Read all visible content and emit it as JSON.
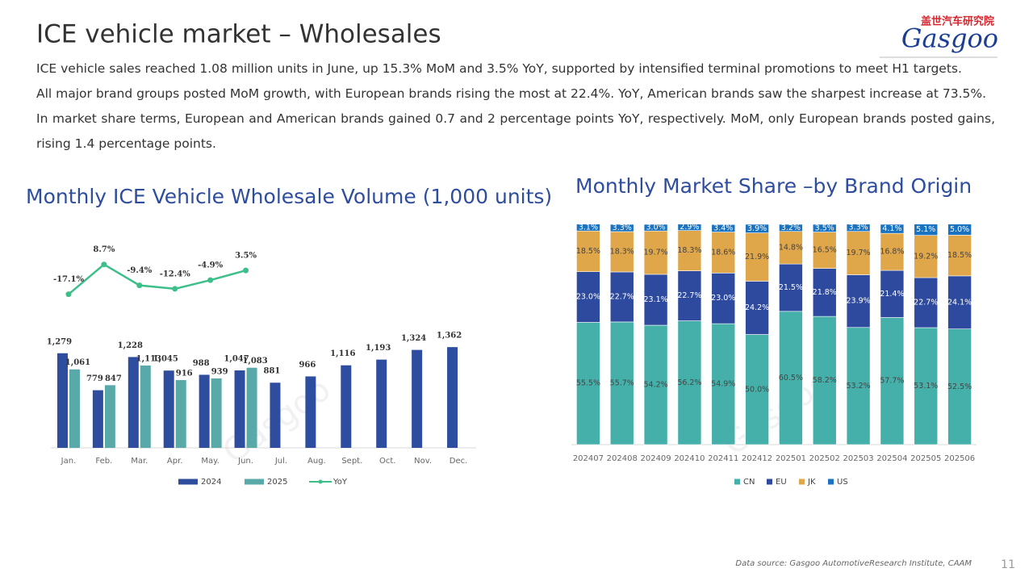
{
  "title": "ICE vehicle market – Wholesales",
  "paragraphs": [
    "ICE vehicle sales reached 1.08 million units in June, up 15.3% MoM and 3.5% YoY, supported by intensified terminal promotions to meet H1 targets.",
    "All major brand groups posted MoM growth, with European brands rising the most at 22.4%. YoY, American brands saw the sharpest increase at 73.5%.",
    "In market share terms, European and American brands gained 0.7 and 2 percentage points YoY, respectively. MoM, only European brands posted gains, rising 1.4 percentage points."
  ],
  "logo": {
    "chinese": "盖世汽车研究院",
    "brand": "Gasgoo"
  },
  "source": "Data source: Gasgoo AutomotiveResearch Institute, CAAM",
  "page_number": "11",
  "chart_data": [
    {
      "type": "bar",
      "title": "Monthly ICE Vehicle Wholesale Volume (1,000 units)",
      "categories": [
        "Jan.",
        "Feb.",
        "Mar.",
        "Apr.",
        "May.",
        "Jun.",
        "Jul.",
        "Aug.",
        "Sept.",
        "Oct.",
        "Nov.",
        "Dec."
      ],
      "ylim": [
        0,
        3000
      ],
      "y2lim": [
        -150,
        42
      ],
      "legend": "bottom",
      "series": [
        {
          "name": "2024",
          "color": "#2e4d9e",
          "values": [
            1279,
            779,
            1228,
            1045,
            988,
            1047,
            881,
            966,
            1116,
            1193,
            1324,
            1362
          ],
          "value_labels": [
            "1,279",
            "779",
            "1,228",
            "1,045",
            "988",
            "1,047",
            "881",
            "966",
            "1,116",
            "1,193",
            "1,324",
            "1,362"
          ]
        },
        {
          "name": "2025",
          "color": "#5aa9a9",
          "values": [
            1061,
            847,
            1113,
            916,
            939,
            1083,
            null,
            null,
            null,
            null,
            null,
            null
          ],
          "value_labels": [
            "1,061",
            "847",
            "1,113",
            "916",
            "939",
            "1,083",
            null,
            null,
            null,
            null,
            null,
            null
          ]
        },
        {
          "name": "YoY",
          "type": "line",
          "axis": "y2",
          "color": "#3dbf8a",
          "values": [
            -17.1,
            8.7,
            -9.4,
            -12.4,
            -4.9,
            3.5,
            null,
            null,
            null,
            null,
            null,
            null
          ],
          "value_labels": [
            "-17.1%",
            "8.7%",
            "-9.4%",
            "-12.4%",
            "-4.9%",
            "3.5%",
            null,
            null,
            null,
            null,
            null,
            null
          ]
        }
      ]
    },
    {
      "type": "stacked_bar",
      "title": "Monthly Market Share –by Brand Origin",
      "categories": [
        "202407",
        "202408",
        "202409",
        "202410",
        "202411",
        "202412",
        "202501",
        "202502",
        "202503",
        "202504",
        "202505",
        "202506"
      ],
      "ylim": [
        0,
        100
      ],
      "legend": "bottom",
      "series": [
        {
          "name": "CN",
          "color": "#45b0aa",
          "values": [
            55.5,
            55.7,
            54.2,
            56.2,
            54.9,
            50.0,
            60.5,
            58.2,
            53.2,
            57.7,
            53.1,
            52.5
          ],
          "value_labels": [
            "55.5%",
            "55.7%",
            "54.2%",
            "56.2%",
            "54.9%",
            "50.0%",
            "60.5%",
            "58.2%",
            "53.2%",
            "57.7%",
            "53.1%",
            "52.5%"
          ]
        },
        {
          "name": "EU",
          "color": "#2e4a9e",
          "values": [
            23.0,
            22.7,
            23.1,
            22.7,
            23.0,
            24.2,
            21.5,
            21.8,
            23.9,
            21.4,
            22.7,
            24.1
          ],
          "value_labels": [
            "23.0%",
            "22.7%",
            "23.1%",
            "22.7%",
            "23.0%",
            "24.2%",
            "21.5%",
            "21.8%",
            "23.9%",
            "21.4%",
            "22.7%",
            "24.1%"
          ]
        },
        {
          "name": "JK",
          "color": "#e0a64a",
          "values": [
            18.5,
            18.3,
            19.7,
            18.3,
            18.6,
            21.9,
            14.8,
            16.5,
            19.7,
            16.8,
            19.2,
            18.5
          ],
          "value_labels": [
            "18.5%",
            "18.3%",
            "19.7%",
            "18.3%",
            "18.6%",
            "21.9%",
            "14.8%",
            "16.5%",
            "19.7%",
            "16.8%",
            "19.2%",
            "18.5%"
          ]
        },
        {
          "name": "US",
          "color": "#1a73c0",
          "values": [
            3.1,
            3.3,
            3.0,
            2.9,
            3.4,
            3.9,
            3.2,
            3.5,
            3.3,
            4.1,
            5.1,
            5.0
          ],
          "value_labels": [
            "3.1%",
            "3.3%",
            "3.0%",
            "2.9%",
            "3.4%",
            "3.9%",
            "3.2%",
            "3.5%",
            "3.3%",
            "4.1%",
            "5.1%",
            "5.0%"
          ]
        }
      ]
    }
  ]
}
